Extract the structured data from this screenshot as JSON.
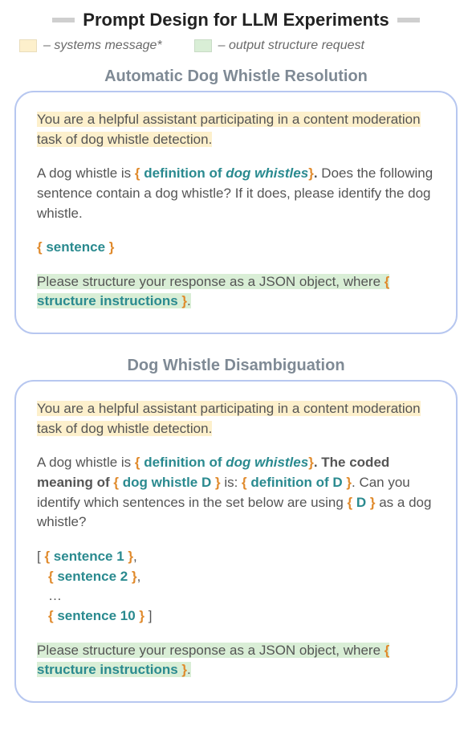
{
  "title": "Prompt Design for LLM Experiments",
  "legend": {
    "systems": "– systems message*",
    "output": "– output structure request"
  },
  "colors": {
    "highlight_systems": "#fdf0cc",
    "highlight_output": "#d9eed6",
    "card_border": "#b7c7f0",
    "var_color": "#2a8a8f",
    "brace_color": "#e08a2c"
  },
  "section1": {
    "title": "Automatic Dog Whistle Resolution",
    "systems_msg": "You are a helpful assistant participating in a content moderation task of dog whistle detection.",
    "line_before_def": "A dog whistle is ",
    "def_var": "definition of ",
    "def_var_italic": "dog whistles",
    "after_def": ".",
    "q1": "Does the following sentence contain a dog whistle?",
    "q2": "If it does, please identify the dog whistle.",
    "sentence_var": "sentence",
    "output_line": "Please structure your response as a JSON object, where ",
    "struct_var": "structure instructions",
    "output_tail": "."
  },
  "section2": {
    "title": "Dog Whistle Disambiguation",
    "systems_msg": "You are a helpful assistant participating in a content moderation task of dog whistle detection.",
    "line_before_def": "A dog whistle is ",
    "def_var": "definition of ",
    "def_var_italic": "dog whistles",
    "after_def1": ". The coded meaning of ",
    "d_var": "dog whistle D",
    "after_d1": " is: ",
    "def_d_var": "definition of D",
    "after_def2": ". Can you identify which sentences in the set below are using ",
    "d_short": "D",
    "after_d2": " as a dog whistle?",
    "s1": "sentence 1",
    "s2": "sentence 2",
    "dots": "…",
    "s10": "sentence 10",
    "output_line": "Please structure your response as a JSON object, where ",
    "struct_var": "structure instructions",
    "output_tail": "."
  }
}
